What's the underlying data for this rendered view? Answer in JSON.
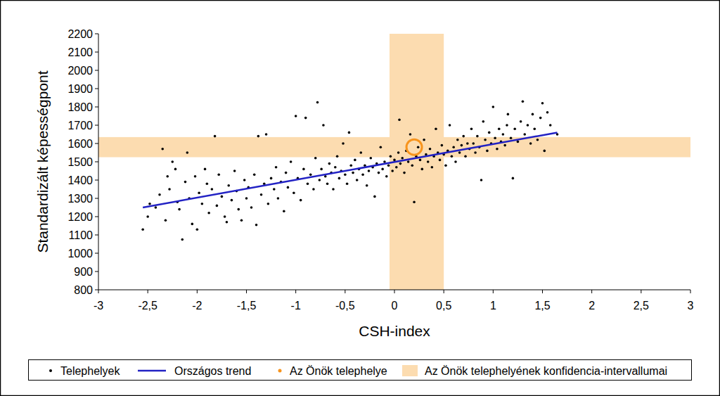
{
  "chart_data": {
    "type": "scatter",
    "x_label": "CSH-index",
    "y_label": "Standardizált képességpont",
    "xlim": [
      -3,
      3
    ],
    "ylim": [
      800,
      2200
    ],
    "xticks": [
      -3,
      {
        "value": -2.5,
        "label": "-2,5"
      },
      -2,
      {
        "value": -1.5,
        "label": "-1,5"
      },
      -1,
      {
        "value": -0.5,
        "label": "-0,5"
      },
      0,
      {
        "value": 0.5,
        "label": "0,5"
      },
      1,
      {
        "value": 1.5,
        "label": "1,5"
      },
      2,
      {
        "value": 2.5,
        "label": "2,5"
      },
      3
    ],
    "yticks": [
      800,
      900,
      1000,
      1100,
      1200,
      1300,
      1400,
      1500,
      1600,
      1700,
      1800,
      1900,
      2000,
      2100,
      2200
    ],
    "grid": false,
    "legend": "bottom",
    "series": [
      {
        "name": "Telephelyek",
        "type": "scatter",
        "color": "#000000",
        "marker": "dot",
        "x": [
          -2.55,
          -2.5,
          -2.48,
          -2.42,
          -2.38,
          -2.35,
          -2.32,
          -2.3,
          -2.28,
          -2.25,
          -2.22,
          -2.2,
          -2.18,
          -2.15,
          -2.12,
          -2.1,
          -2.08,
          -2.05,
          -2.02,
          -2.0,
          -1.98,
          -1.95,
          -1.92,
          -1.9,
          -1.88,
          -1.85,
          -1.82,
          -1.8,
          -1.78,
          -1.75,
          -1.72,
          -1.7,
          -1.68,
          -1.65,
          -1.62,
          -1.6,
          -1.58,
          -1.55,
          -1.52,
          -1.5,
          -1.48,
          -1.45,
          -1.42,
          -1.4,
          -1.38,
          -1.35,
          -1.32,
          -1.3,
          -1.28,
          -1.25,
          -1.22,
          -1.2,
          -1.18,
          -1.15,
          -1.12,
          -1.1,
          -1.08,
          -1.05,
          -1.02,
          -1.0,
          -0.98,
          -0.95,
          -0.92,
          -0.9,
          -0.88,
          -0.85,
          -0.82,
          -0.8,
          -0.78,
          -0.76,
          -0.74,
          -0.72,
          -0.7,
          -0.68,
          -0.66,
          -0.64,
          -0.62,
          -0.6,
          -0.58,
          -0.56,
          -0.54,
          -0.52,
          -0.5,
          -0.48,
          -0.46,
          -0.44,
          -0.42,
          -0.4,
          -0.38,
          -0.36,
          -0.34,
          -0.32,
          -0.3,
          -0.28,
          -0.26,
          -0.24,
          -0.22,
          -0.2,
          -0.18,
          -0.16,
          -0.14,
          -0.12,
          -0.1,
          -0.08,
          -0.06,
          -0.04,
          -0.02,
          0,
          0.02,
          0.04,
          0.05,
          0.06,
          0.08,
          0.1,
          0.12,
          0.14,
          0.16,
          0.18,
          0.2,
          0.22,
          0.24,
          0.26,
          0.28,
          0.3,
          0.32,
          0.34,
          0.36,
          0.38,
          0.4,
          0.42,
          0.44,
          0.46,
          0.48,
          0.5,
          0.52,
          0.54,
          0.56,
          0.58,
          0.6,
          0.62,
          0.64,
          0.66,
          0.68,
          0.7,
          0.72,
          0.74,
          0.76,
          0.78,
          0.8,
          0.82,
          0.84,
          0.86,
          0.88,
          0.9,
          0.92,
          0.94,
          0.96,
          0.98,
          1.0,
          1.02,
          1.04,
          1.06,
          1.08,
          1.1,
          1.12,
          1.14,
          1.15,
          1.18,
          1.2,
          1.22,
          1.25,
          1.28,
          1.3,
          1.32,
          1.35,
          1.38,
          1.4,
          1.42,
          1.45,
          1.48,
          1.5,
          1.52,
          1.55,
          1.58,
          1.65
        ],
        "values": [
          1130,
          1200,
          1270,
          1250,
          1320,
          1570,
          1180,
          1420,
          1350,
          1500,
          1460,
          1280,
          1240,
          1075,
          1390,
          1550,
          1300,
          1160,
          1420,
          1130,
          1330,
          1270,
          1460,
          1380,
          1220,
          1350,
          1640,
          1260,
          1430,
          1310,
          1200,
          1170,
          1370,
          1290,
          1450,
          1340,
          1240,
          1180,
          1400,
          1300,
          1360,
          1250,
          1430,
          1155,
          1640,
          1320,
          1380,
          1650,
          1270,
          1410,
          1350,
          1470,
          1300,
          1390,
          1230,
          1440,
          1360,
          1500,
          1330,
          1750,
          1410,
          1290,
          1460,
          1740,
          1380,
          1430,
          1350,
          1520,
          1825,
          1400,
          1460,
          1700,
          1420,
          1380,
          1490,
          1440,
          1350,
          1470,
          1530,
          1410,
          1450,
          1600,
          1430,
          1380,
          1660,
          1480,
          1440,
          1510,
          1400,
          1460,
          1550,
          1430,
          1480,
          1370,
          1450,
          1520,
          1470,
          1310,
          1490,
          1440,
          1580,
          1460,
          1500,
          1420,
          1480,
          1530,
          1450,
          1510,
          1470,
          1550,
          1730,
          1490,
          1520,
          1440,
          1560,
          1500,
          1650,
          1480,
          1280,
          1530,
          1580,
          1510,
          1460,
          1620,
          1540,
          1500,
          1570,
          1470,
          1530,
          1680,
          1550,
          1510,
          1590,
          1540,
          1480,
          1560,
          1700,
          1530,
          1580,
          1500,
          1620,
          1550,
          1590,
          1640,
          1530,
          1600,
          1570,
          1680,
          1600,
          1550,
          1640,
          1580,
          1400,
          1720,
          1620,
          1560,
          1660,
          1600,
          1800,
          1630,
          1570,
          1680,
          1610,
          1650,
          1590,
          1700,
          1760,
          1630,
          1410,
          1680,
          1610,
          1720,
          1830,
          1650,
          1700,
          1600,
          1760,
          1680,
          1620,
          1740,
          1820,
          1560,
          1770,
          1700,
          1650
        ]
      },
      {
        "name": "Országos trend",
        "type": "line",
        "color": "#2222c4",
        "line_style": "solid",
        "x": [
          -2.55,
          1.65
        ],
        "values": [
          1250,
          1660
        ]
      },
      {
        "name": "Az Önök telephelye",
        "type": "scatter",
        "color": "#f7941d",
        "marker": "circle",
        "x": [
          0.2
        ],
        "values": [
          1580
        ]
      },
      {
        "name": "Az Önök telephelyének konfidencia-intervallumai",
        "type": "interval",
        "color": "#fcdcb0",
        "x": [
          -0.05,
          0.5
        ],
        "values": [
          1525,
          1635
        ]
      }
    ]
  }
}
